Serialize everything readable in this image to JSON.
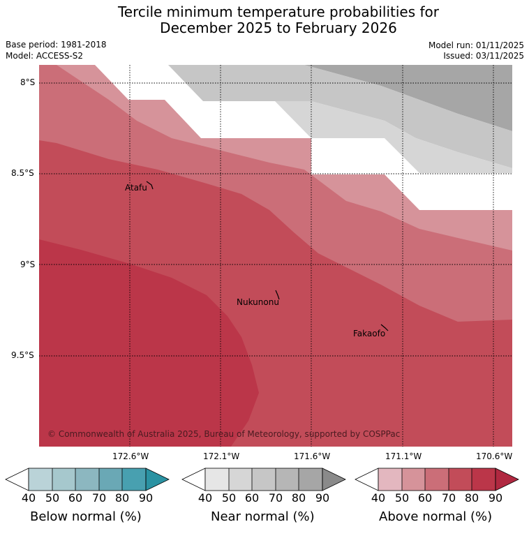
{
  "title": {
    "line1": "Tercile minimum temperature probabilities for",
    "line2": "December 2025 to February 2026"
  },
  "meta": {
    "base_period": "Base period: 1981-2018",
    "model": "Model: ACCESS-S2",
    "model_run": "Model run: 01/11/2025",
    "issued": "Issued: 03/11/2025"
  },
  "map": {
    "lat_ticks": [
      "8°S",
      "8.5°S",
      "9°S",
      "9.5°S"
    ],
    "lon_ticks": [
      "172.6°W",
      "172.1°W",
      "171.6°W",
      "171.1°W",
      "170.6°W"
    ],
    "islands": [
      {
        "name": "Atafu"
      },
      {
        "name": "Nukunonu"
      },
      {
        "name": "Fakaofo"
      }
    ],
    "copyright": "© Commonwealth of Australia 2025, Bureau of Meteorology, supported by COSPPac",
    "colors": {
      "above": [
        "#e3b7bf",
        "#d6939a",
        "#cb6e78",
        "#c24c59",
        "#bb3649"
      ],
      "near": [
        "#e6e6e6",
        "#d6d6d6",
        "#c6c6c6",
        "#b6b6b6",
        "#a6a6a6",
        "#8a8a8a"
      ],
      "below": [
        "#bad3d8",
        "#a6c8cd",
        "#8cb7c0",
        "#6aa8b5",
        "#48a0b0",
        "#2a92a2"
      ]
    }
  },
  "colorbars": [
    {
      "name": "below",
      "label": "Below normal (%)",
      "ticks": [
        "40",
        "50",
        "60",
        "70",
        "80",
        "90"
      ]
    },
    {
      "name": "near",
      "label": "Near normal (%)",
      "ticks": [
        "40",
        "50",
        "60",
        "70",
        "80",
        "90"
      ]
    },
    {
      "name": "above",
      "label": "Above normal (%)",
      "ticks": [
        "40",
        "50",
        "60",
        "70",
        "80",
        "90"
      ]
    }
  ]
}
